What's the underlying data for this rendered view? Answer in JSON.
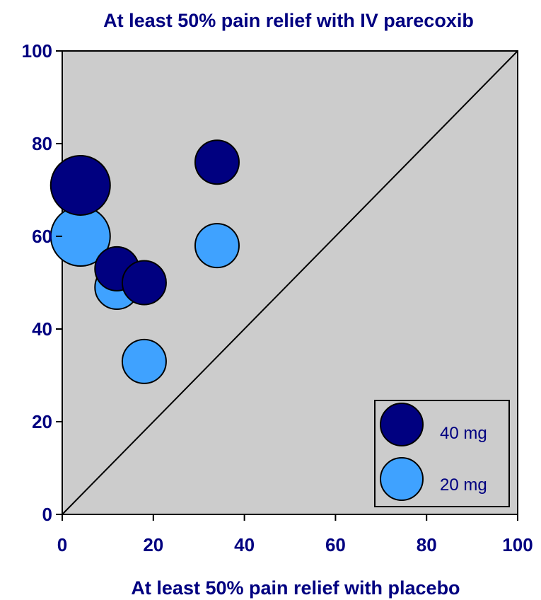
{
  "chart_data": {
    "type": "scatter",
    "title": "At least 50% pain relief with IV parecoxib",
    "xlabel": "At least 50% pain relief with placebo",
    "ylabel": "",
    "xlim": [
      0,
      100
    ],
    "ylim": [
      0,
      100
    ],
    "x_ticks": [
      "0",
      "20",
      "40",
      "60",
      "80",
      "100"
    ],
    "y_ticks": [
      "0",
      "20",
      "40",
      "60",
      "80",
      "100"
    ],
    "grid": false,
    "legend_position": "bottom-right",
    "diagonal_reference_line": true,
    "background_color": "#cccccc",
    "series": [
      {
        "name": "20 mg",
        "color": "#3fa2ff",
        "points": [
          {
            "x": 4,
            "y": 60,
            "size": "large"
          },
          {
            "x": 12,
            "y": 49,
            "size": "medium"
          },
          {
            "x": 18,
            "y": 33,
            "size": "medium"
          },
          {
            "x": 34,
            "y": 58,
            "size": "medium"
          }
        ]
      },
      {
        "name": "40 mg",
        "color": "#000080",
        "points": [
          {
            "x": 4,
            "y": 71,
            "size": "large"
          },
          {
            "x": 12,
            "y": 53,
            "size": "medium"
          },
          {
            "x": 18,
            "y": 50,
            "size": "medium"
          },
          {
            "x": 34,
            "y": 76,
            "size": "medium"
          }
        ]
      }
    ],
    "legend": [
      {
        "label": "40 mg",
        "color": "#000080"
      },
      {
        "label": "20 mg",
        "color": "#3fa2ff"
      }
    ]
  }
}
